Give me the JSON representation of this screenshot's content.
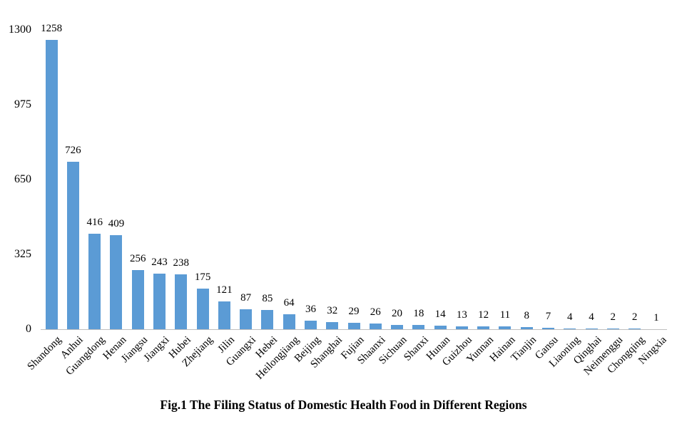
{
  "figure": {
    "caption": "Fig.1 The Filing Status of Domestic Health Food in Different Regions"
  },
  "chart_data": {
    "type": "bar",
    "title": "Fig.1 The Filing Status of Domestic Health Food in Different Regions",
    "categories": [
      "Shandong",
      "Anhui",
      "Guangdong",
      "Henan",
      "Jiangsu",
      "Jiangxi",
      "Hubei",
      "Zhejiang",
      "Jilin",
      "Guangxi",
      "Hebei",
      "Heilongjiang",
      "Beijing",
      "Shanghai",
      "Fujian",
      "Shaanxi",
      "Sichuan",
      "Shanxi",
      "Hunan",
      "Guizhou",
      "Yunnan",
      "Hainan",
      "Tianjin",
      "Gansu",
      "Liaoning",
      "Qinghai",
      "Neimenggu",
      "Chongqing",
      "Ningxia"
    ],
    "values": [
      1258,
      726,
      416,
      409,
      256,
      243,
      238,
      175,
      121,
      87,
      85,
      64,
      36,
      32,
      29,
      26,
      20,
      18,
      14,
      13,
      12,
      11,
      8,
      7,
      4,
      4,
      2,
      2,
      1
    ],
    "data_labels": [
      1258,
      726,
      416,
      409,
      256,
      243,
      238,
      175,
      121,
      87,
      85,
      64,
      36,
      32,
      29,
      26,
      20,
      18,
      14,
      13,
      12,
      11,
      8,
      7,
      4,
      4,
      2,
      2,
      1
    ],
    "xlabel": "",
    "ylabel": "",
    "ylim": [
      0,
      1300
    ],
    "yticks": [
      0,
      325,
      650,
      975,
      1300
    ],
    "grid": false,
    "legend": false,
    "bar_color": "#5B9BD5",
    "axis_color": "#BFBFBF"
  }
}
